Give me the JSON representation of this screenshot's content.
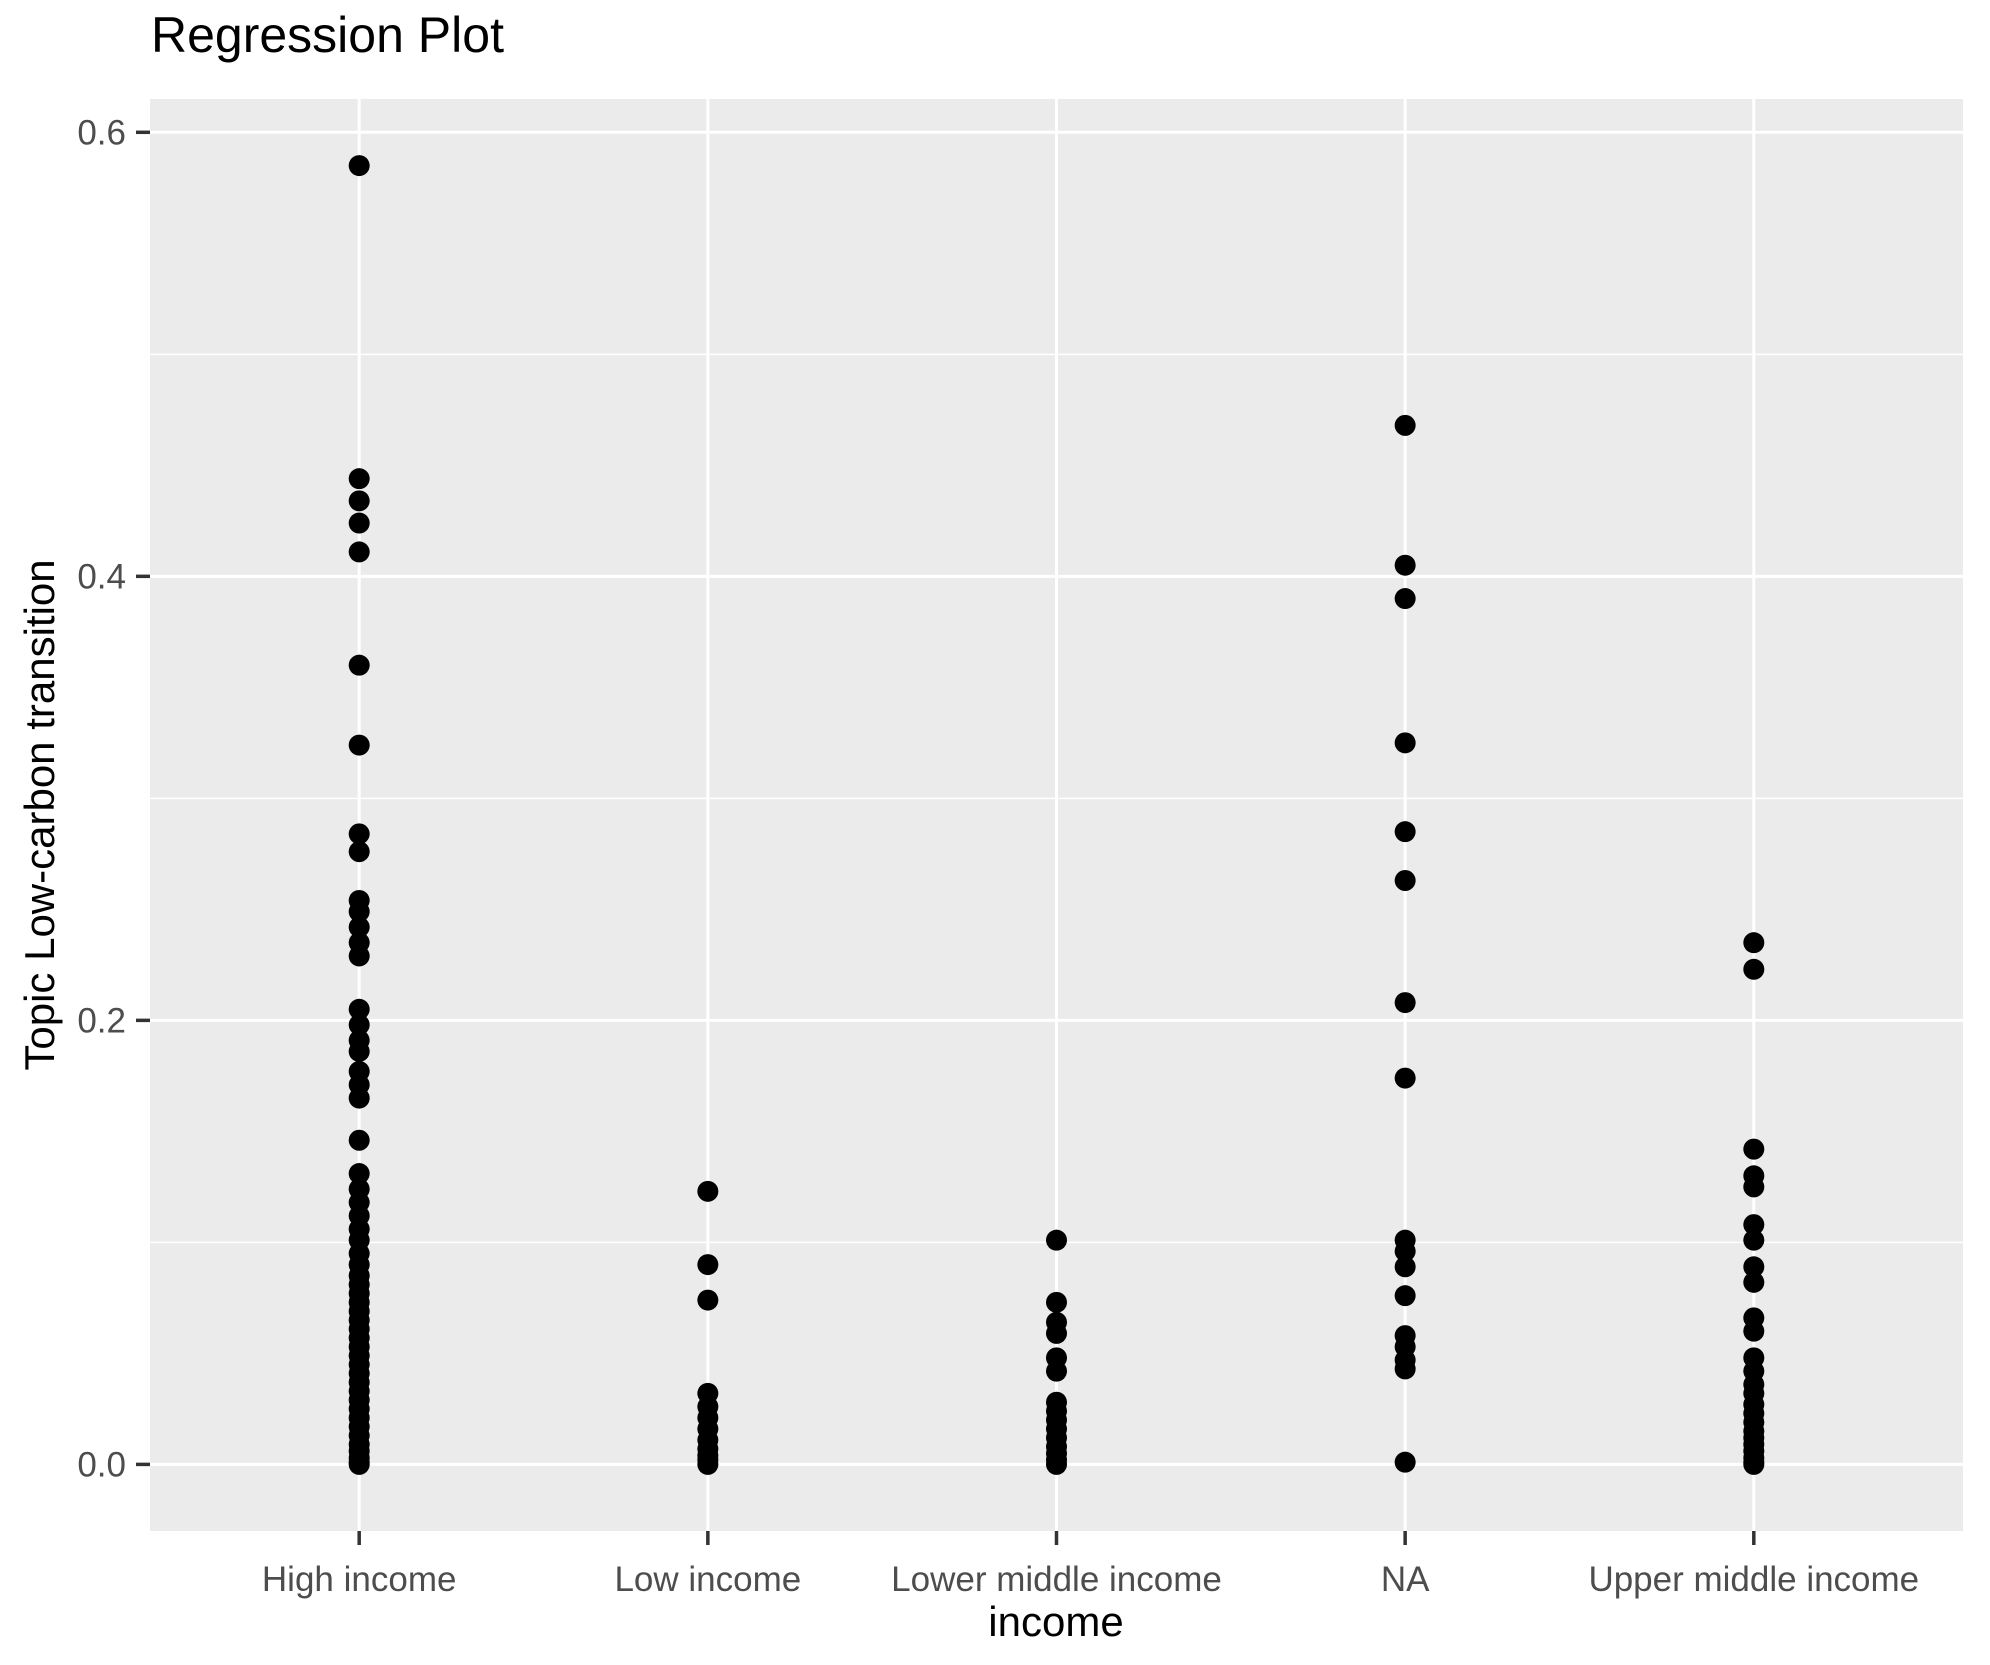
{
  "chart_data": {
    "type": "scatter",
    "title": "Regression Plot",
    "xlabel": "income",
    "ylabel": "Topic Low-carbon transition",
    "categories": [
      "High income",
      "Low income",
      "Lower middle income",
      "NA",
      "Upper middle income"
    ],
    "series": [
      {
        "name": "High income",
        "values": [
          0.585,
          0.444,
          0.434,
          0.424,
          0.411,
          0.36,
          0.324,
          0.284,
          0.276,
          0.254,
          0.249,
          0.242,
          0.235,
          0.229,
          0.205,
          0.198,
          0.191,
          0.186,
          0.177,
          0.171,
          0.165,
          0.146,
          0.131,
          0.124,
          0.118,
          0.112,
          0.106,
          0.101,
          0.095,
          0.09,
          0.085,
          0.081,
          0.077,
          0.073,
          0.069,
          0.065,
          0.061,
          0.057,
          0.053,
          0.049,
          0.045,
          0.041,
          0.037,
          0.033,
          0.029,
          0.025,
          0.021,
          0.017,
          0.013,
          0.009,
          0.006,
          0.003,
          0.001,
          0.0
        ]
      },
      {
        "name": "Low income",
        "values": [
          0.123,
          0.09,
          0.074,
          0.032,
          0.026,
          0.021,
          0.016,
          0.011,
          0.007,
          0.004,
          0.002,
          0.0
        ]
      },
      {
        "name": "Lower middle income",
        "values": [
          0.101,
          0.073,
          0.064,
          0.059,
          0.048,
          0.042,
          0.028,
          0.024,
          0.02,
          0.016,
          0.012,
          0.008,
          0.005,
          0.002,
          0.0
        ]
      },
      {
        "name": "NA",
        "values": [
          0.468,
          0.405,
          0.39,
          0.325,
          0.285,
          0.263,
          0.208,
          0.174,
          0.101,
          0.096,
          0.089,
          0.076,
          0.058,
          0.053,
          0.047,
          0.043,
          0.001
        ]
      },
      {
        "name": "Upper middle income",
        "values": [
          0.235,
          0.223,
          0.142,
          0.13,
          0.125,
          0.108,
          0.101,
          0.089,
          0.082,
          0.066,
          0.06,
          0.048,
          0.042,
          0.036,
          0.032,
          0.027,
          0.023,
          0.019,
          0.015,
          0.012,
          0.009,
          0.006,
          0.003,
          0.001,
          0.0
        ]
      }
    ],
    "y_axis": {
      "tick_labels": [
        "0.0",
        "0.2",
        "0.4",
        "0.6"
      ],
      "tick_values": [
        0.0,
        0.2,
        0.4,
        0.6
      ],
      "minor_tick_values": [
        0.1,
        0.3,
        0.5
      ],
      "ylim": [
        -0.03,
        0.615
      ]
    },
    "layout": {
      "legend": "none",
      "grid": "major-and-minor-horizontal, major-vertical-at-categories",
      "panel_background": "shaded"
    }
  },
  "colors": {
    "panel_bg": "#EBEBEB",
    "grid": "#FFFFFF",
    "point": "#000000",
    "tick_label": "#4D4D4D",
    "tick_mark": "#333333",
    "title_text": "#000000"
  }
}
